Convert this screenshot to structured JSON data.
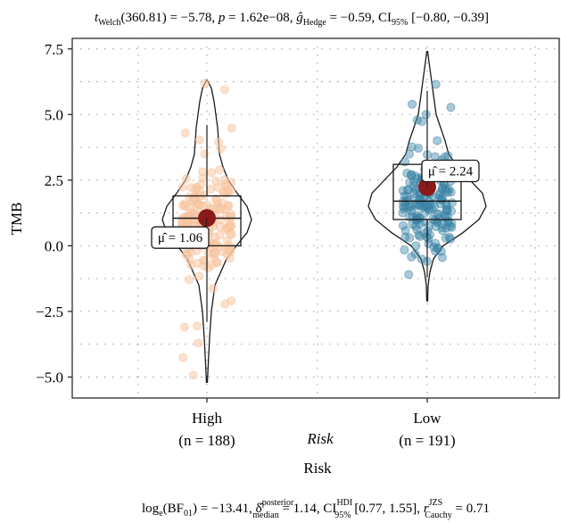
{
  "chart_data": {
    "type": "violin",
    "subtitle_parts": {
      "t": "t",
      "welch": "Welch",
      "stat": "(360.81) = −5.78,",
      "p": "p",
      "pval": " = 1.62e−08,",
      "g": "ĝ",
      "hedge": "Hedge",
      "gval": " = −0.59, CI",
      "ci95": "95%",
      "cival": " [−0.80, −0.39]"
    },
    "xlabel": "Risk",
    "xlabel_inner": "Risk",
    "ylabel": "TMB",
    "ylim": [
      -5.8,
      7.9
    ],
    "yticks": [
      -5.0,
      -2.5,
      0.0,
      2.5,
      5.0,
      7.5
    ],
    "ytick_labels": [
      "−5.0",
      "−2.5",
      "0.0",
      "2.5",
      "5.0",
      "7.5"
    ],
    "categories": [
      "High",
      "Low"
    ],
    "counts": [
      "(n = 188)",
      "(n = 191)"
    ],
    "colors": {
      "High": "#f8c9a4",
      "Low": "#3b87ab",
      "mean": "#8b1a1a",
      "grid": "#9a9a9a"
    },
    "groups": [
      {
        "name": "High",
        "n": 188,
        "mean": 1.06,
        "mean_label": "μ̂ = 1.06",
        "min": -5.2,
        "q1": 0.0,
        "median": 1.05,
        "q3": 1.9,
        "max": 6.3,
        "whisker_low": -2.9,
        "whisker_high": 4.6
      },
      {
        "name": "Low",
        "n": 191,
        "mean": 2.24,
        "mean_label": "μ̂ = 2.24",
        "min": -2.1,
        "q1": 1.0,
        "median": 1.7,
        "q3": 3.1,
        "max": 7.4,
        "whisker_low": -1.2,
        "whisker_high": 5.9
      }
    ],
    "caption_parts": {
      "log": "log",
      "e": "e",
      "bf": "(BF",
      "bf01": "01",
      "bfval": ") = −13.41, ",
      "delta": "δ̂",
      "posterior": "posterior",
      "median": "median",
      "dval": " = 1.14, CI",
      "hdi": "HDI",
      "hdi95": "95%",
      "cival": " [0.77, 1.55], ",
      "r": "r",
      "jzs": "JZS",
      "cauchy": "Cauchy",
      "rval": " = 0.71"
    }
  }
}
